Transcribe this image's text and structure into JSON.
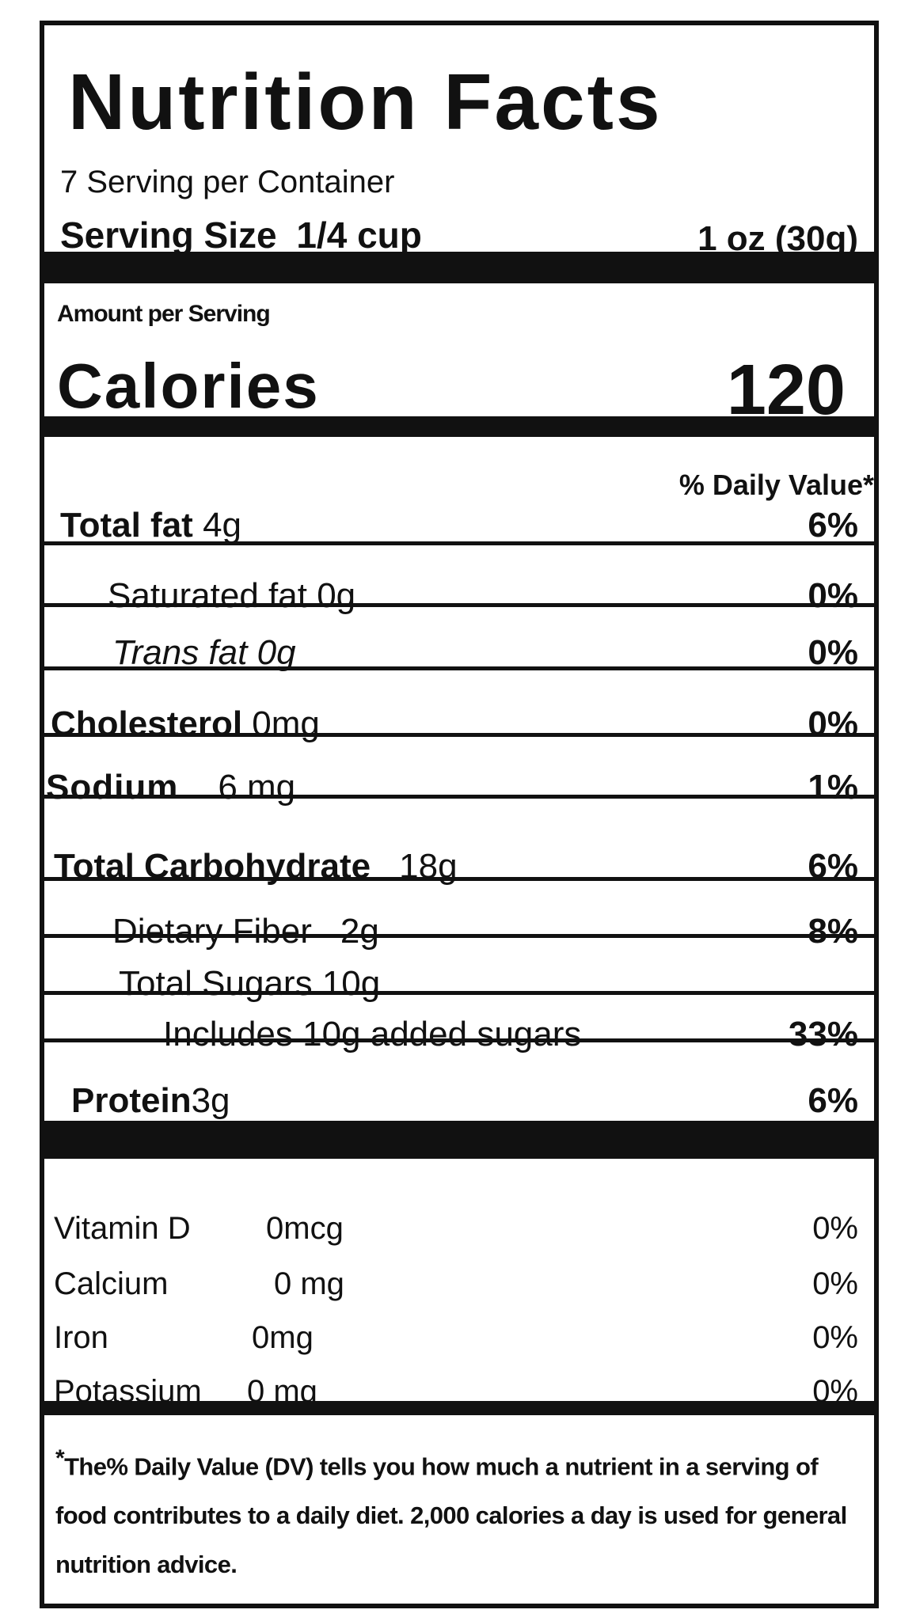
{
  "header": {
    "title": "Nutrition Facts",
    "servings": "7 Serving per Container",
    "serving_size_label": "Serving Size",
    "serving_size_cup": "1/4 cup",
    "serving_size_weight": "1 oz (30g)"
  },
  "calories": {
    "amount_label": "Amount per Serving",
    "label": "Calories",
    "value": "120"
  },
  "nutrients": {
    "dv_header": "% Daily Value*",
    "rows": [
      {
        "name": "Total fat",
        "amount": "4g",
        "dv": "6%"
      },
      {
        "name": "Saturated fat",
        "amount": "0g",
        "dv": "0%"
      },
      {
        "name": "Trans fat",
        "amount": "0g",
        "dv": "0%"
      },
      {
        "name": "Cholesterol",
        "amount": "0mg",
        "dv": "0%"
      },
      {
        "name": "Sodium",
        "amount": "6 mg",
        "dv": "1%"
      },
      {
        "name": "Total Carbohydrate",
        "amount": "18g",
        "dv": "6%"
      },
      {
        "name": "Dietary Fiber",
        "amount": "2g",
        "dv": "8%"
      },
      {
        "name": "Total Sugars",
        "amount": "10g"
      },
      {
        "name": "Includes 10g added sugars",
        "dv": "33%"
      },
      {
        "name": "Protein",
        "amount": "3g",
        "dv": "6%"
      }
    ]
  },
  "vitamins": [
    {
      "name": "Vitamin D",
      "amount": "0mcg",
      "dv": "0%"
    },
    {
      "name": "Calcium",
      "amount": "0 mg",
      "dv": "0%"
    },
    {
      "name": "Iron",
      "amount": "0mg",
      "dv": "0%"
    },
    {
      "name": "Potassium",
      "amount": "0 mg",
      "dv": "0%"
    }
  ],
  "footnote": {
    "marker": "*",
    "text": "The% Daily Value (DV) tells you how much a nutrient in a serving of food contributes to a daily diet. 2,000 calories a day is used for general nutrition advice."
  }
}
